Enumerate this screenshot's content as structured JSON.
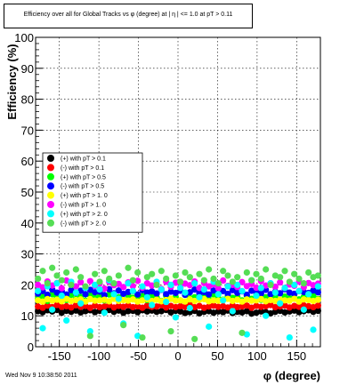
{
  "chart_data": {
    "type": "scatter",
    "title": "Efficiency over all for Global Tracks vs φ (degree) at |   η | <= 1.0 at pT > 0.11",
    "xlabel": "φ (degree)",
    "ylabel": "Efficiency (%)",
    "xlim": [
      -180,
      180
    ],
    "ylim": [
      0,
      100
    ],
    "xticks": [
      -150,
      -100,
      -50,
      0,
      50,
      100,
      150
    ],
    "yticks": [
      0,
      10,
      20,
      30,
      40,
      50,
      60,
      70,
      80,
      90,
      100
    ],
    "grid": true,
    "legend_position": "middle-left",
    "x": [
      -177,
      -171,
      -165,
      -159,
      -153,
      -147,
      -141,
      -135,
      -129,
      -123,
      -117,
      -111,
      -105,
      -99,
      -93,
      -87,
      -81,
      -75,
      -69,
      -63,
      -57,
      -51,
      -45,
      -39,
      -33,
      -27,
      -21,
      -15,
      -9,
      -3,
      3,
      9,
      15,
      21,
      27,
      33,
      39,
      45,
      51,
      57,
      63,
      69,
      75,
      81,
      87,
      93,
      99,
      105,
      111,
      117,
      123,
      129,
      135,
      141,
      147,
      153,
      159,
      165,
      171,
      177
    ],
    "series": [
      {
        "name": "(+) with pT > 0.1",
        "marker": "circle",
        "color": "#000000",
        "values": [
          11.5,
          11.2,
          11.8,
          11.4,
          11.9,
          11.0,
          11.6,
          11.3,
          11.7,
          11.1,
          11.5,
          11.8,
          11.2,
          11.6,
          11.4,
          11.9,
          11.3,
          11.7,
          11.0,
          11.5,
          11.6,
          11.2,
          11.8,
          11.4,
          11.7,
          11.3,
          11.5,
          11.9,
          11.1,
          11.6,
          11.4,
          10.9,
          11.2,
          11.6,
          10.8,
          11.3,
          11.5,
          11.0,
          11.4,
          11.2,
          11.7,
          10.9,
          11.3,
          11.1,
          11.5,
          10.7,
          11.0,
          11.4,
          11.2,
          10.8,
          11.3,
          11.6,
          11.1,
          11.4,
          11.7,
          11.2,
          11.5,
          11.8,
          11.3,
          11.6
        ]
      },
      {
        "name": "(-) with pT > 0.1",
        "marker": "circle",
        "color": "#ff0000",
        "values": [
          13.0,
          12.6,
          13.3,
          12.8,
          13.5,
          12.9,
          13.1,
          12.7,
          13.4,
          12.9,
          13.2,
          12.6,
          13.3,
          12.8,
          13.0,
          13.5,
          12.7,
          13.2,
          12.9,
          13.4,
          12.8,
          13.1,
          12.6,
          13.3,
          12.9,
          13.0,
          13.4,
          12.7,
          13.2,
          12.8,
          13.1,
          12.9,
          13.5,
          12.8,
          13.2,
          12.6,
          13.0,
          13.3,
          12.9,
          13.1,
          12.7,
          13.4,
          12.8,
          13.0,
          13.3,
          12.6,
          13.2,
          12.9,
          13.1,
          13.5,
          12.8,
          13.0,
          13.3,
          12.7,
          13.2,
          12.9,
          13.4,
          13.1,
          12.8,
          13.3
        ]
      },
      {
        "name": "(+) with pT > 0.5",
        "marker": "circle",
        "color": "#00ff00",
        "values": [
          15.5,
          16.2,
          14.8,
          17.0,
          15.9,
          16.5,
          15.1,
          16.8,
          15.4,
          16.1,
          14.9,
          16.6,
          15.7,
          16.3,
          15.0,
          16.9,
          15.6,
          16.0,
          15.2,
          16.7,
          15.8,
          15.3,
          16.4,
          15.1,
          16.2,
          15.9,
          14.8,
          16.5,
          15.5,
          16.1,
          15.0,
          16.8,
          15.7,
          16.0,
          15.3,
          16.6,
          15.4,
          16.9,
          15.6,
          15.2,
          16.3,
          15.8,
          16.1,
          15.0,
          16.5,
          15.5,
          16.7,
          15.2,
          16.0,
          15.9,
          16.4,
          15.1,
          16.2,
          15.6,
          16.8,
          15.3,
          16.1,
          15.7,
          16.5,
          15.4
        ]
      },
      {
        "name": "(-) with pT > 0.5",
        "marker": "circle",
        "color": "#0000ff",
        "values": [
          17.2,
          18.0,
          16.8,
          18.5,
          17.5,
          17.9,
          16.9,
          18.3,
          17.4,
          18.1,
          17.0,
          18.4,
          17.6,
          17.8,
          16.7,
          18.6,
          17.3,
          18.2,
          17.1,
          17.7,
          18.0,
          16.9,
          18.3,
          17.5,
          17.9,
          17.2,
          18.4,
          17.0,
          17.8,
          17.4,
          18.1,
          16.8,
          17.6,
          18.5,
          17.3,
          17.7,
          16.9,
          18.2,
          17.5,
          18.0,
          17.1,
          18.3,
          17.4,
          17.9,
          16.8,
          18.1,
          17.6,
          17.2,
          18.4,
          17.0,
          17.8,
          17.3,
          18.6,
          17.5,
          17.1,
          18.0,
          17.7,
          17.4,
          18.2,
          17.6
        ]
      },
      {
        "name": "(+) with pT > 1. 0",
        "marker": "circle",
        "color": "#ffff00",
        "values": [
          15.0,
          14.6,
          15.4,
          14.9,
          15.2,
          14.7,
          15.5,
          14.8,
          15.1,
          15.3,
          14.6,
          15.4,
          14.9,
          15.0,
          15.2,
          14.7,
          15.5,
          14.8,
          15.1,
          14.9,
          15.3,
          14.6,
          15.0,
          15.4,
          14.8,
          15.2,
          14.7,
          15.1,
          15.5,
          14.9,
          15.0,
          14.6,
          15.3,
          14.8,
          15.2,
          15.4,
          14.7,
          15.0,
          14.9,
          15.1,
          15.5,
          14.8,
          15.2,
          14.6,
          15.3,
          14.9,
          15.0,
          15.4,
          14.7,
          15.1,
          14.8,
          15.2,
          15.0,
          14.9,
          15.5,
          14.6,
          15.3,
          15.1,
          14.8,
          15.2
        ]
      },
      {
        "name": "(-) with pT > 1. 0",
        "marker": "circle",
        "color": "#ff00ff",
        "values": [
          20.0,
          19.2,
          21.1,
          19.8,
          20.6,
          18.9,
          21.4,
          20.2,
          19.5,
          20.9,
          19.0,
          21.2,
          19.7,
          20.4,
          18.8,
          21.0,
          19.9,
          20.3,
          19.3,
          20.8,
          19.6,
          21.3,
          19.1,
          20.5,
          19.8,
          20.1,
          18.7,
          21.0,
          19.4,
          20.7,
          19.2,
          20.4,
          19.9,
          21.1,
          19.0,
          20.6,
          19.5,
          20.2,
          18.9,
          21.4,
          19.7,
          20.0,
          19.3,
          20.9,
          19.6,
          20.3,
          19.1,
          21.2,
          19.8,
          20.5,
          19.4,
          20.8,
          19.0,
          20.1,
          19.7,
          21.0,
          19.2,
          20.6,
          19.9,
          20.4
        ]
      },
      {
        "name": "(+) with pT > 2. 0",
        "marker": "circle",
        "color": "#00ffff",
        "values": [
          18.0,
          6.0,
          19.5,
          12.0,
          20.5,
          16.5,
          8.5,
          21.0,
          17.5,
          14.0,
          19.0,
          5.0,
          20.0,
          18.5,
          11.0,
          21.5,
          17.0,
          15.5,
          7.5,
          20.5,
          18.0,
          3.5,
          19.5,
          16.0,
          13.5,
          21.0,
          18.5,
          14.5,
          20.0,
          9.5,
          19.0,
          17.5,
          12.5,
          20.5,
          16.0,
          18.5,
          6.5,
          21.0,
          17.0,
          15.0,
          19.5,
          11.5,
          20.0,
          18.0,
          4.0,
          21.5,
          16.5,
          19.0,
          10.0,
          20.5,
          17.5,
          14.0,
          19.0,
          3.0,
          20.0,
          18.0,
          12.0,
          17.0,
          5.5,
          19.5
        ]
      },
      {
        "name": "(-) with pT > 2. 0",
        "marker": "circle",
        "color": "#55dd55",
        "values": [
          22.0,
          24.5,
          20.5,
          25.5,
          23.0,
          21.5,
          24.0,
          20.0,
          25.0,
          22.5,
          19.5,
          3.5,
          23.5,
          21.0,
          24.5,
          22.0,
          20.5,
          23.0,
          7.0,
          25.5,
          21.5,
          24.0,
          3.0,
          22.5,
          23.5,
          20.0,
          24.5,
          22.0,
          5.0,
          23.0,
          21.0,
          24.0,
          22.5,
          2.5,
          23.5,
          21.5,
          25.0,
          22.0,
          20.5,
          24.5,
          23.0,
          21.0,
          22.5,
          4.5,
          24.0,
          21.5,
          23.5,
          22.0,
          25.0,
          20.0,
          23.0,
          22.5,
          24.5,
          21.0,
          23.5,
          22.0,
          20.5,
          24.0,
          22.5,
          23.0
        ]
      }
    ]
  },
  "footer": {
    "timestamp": "Wed Nov  9 10:38:50 2011"
  }
}
